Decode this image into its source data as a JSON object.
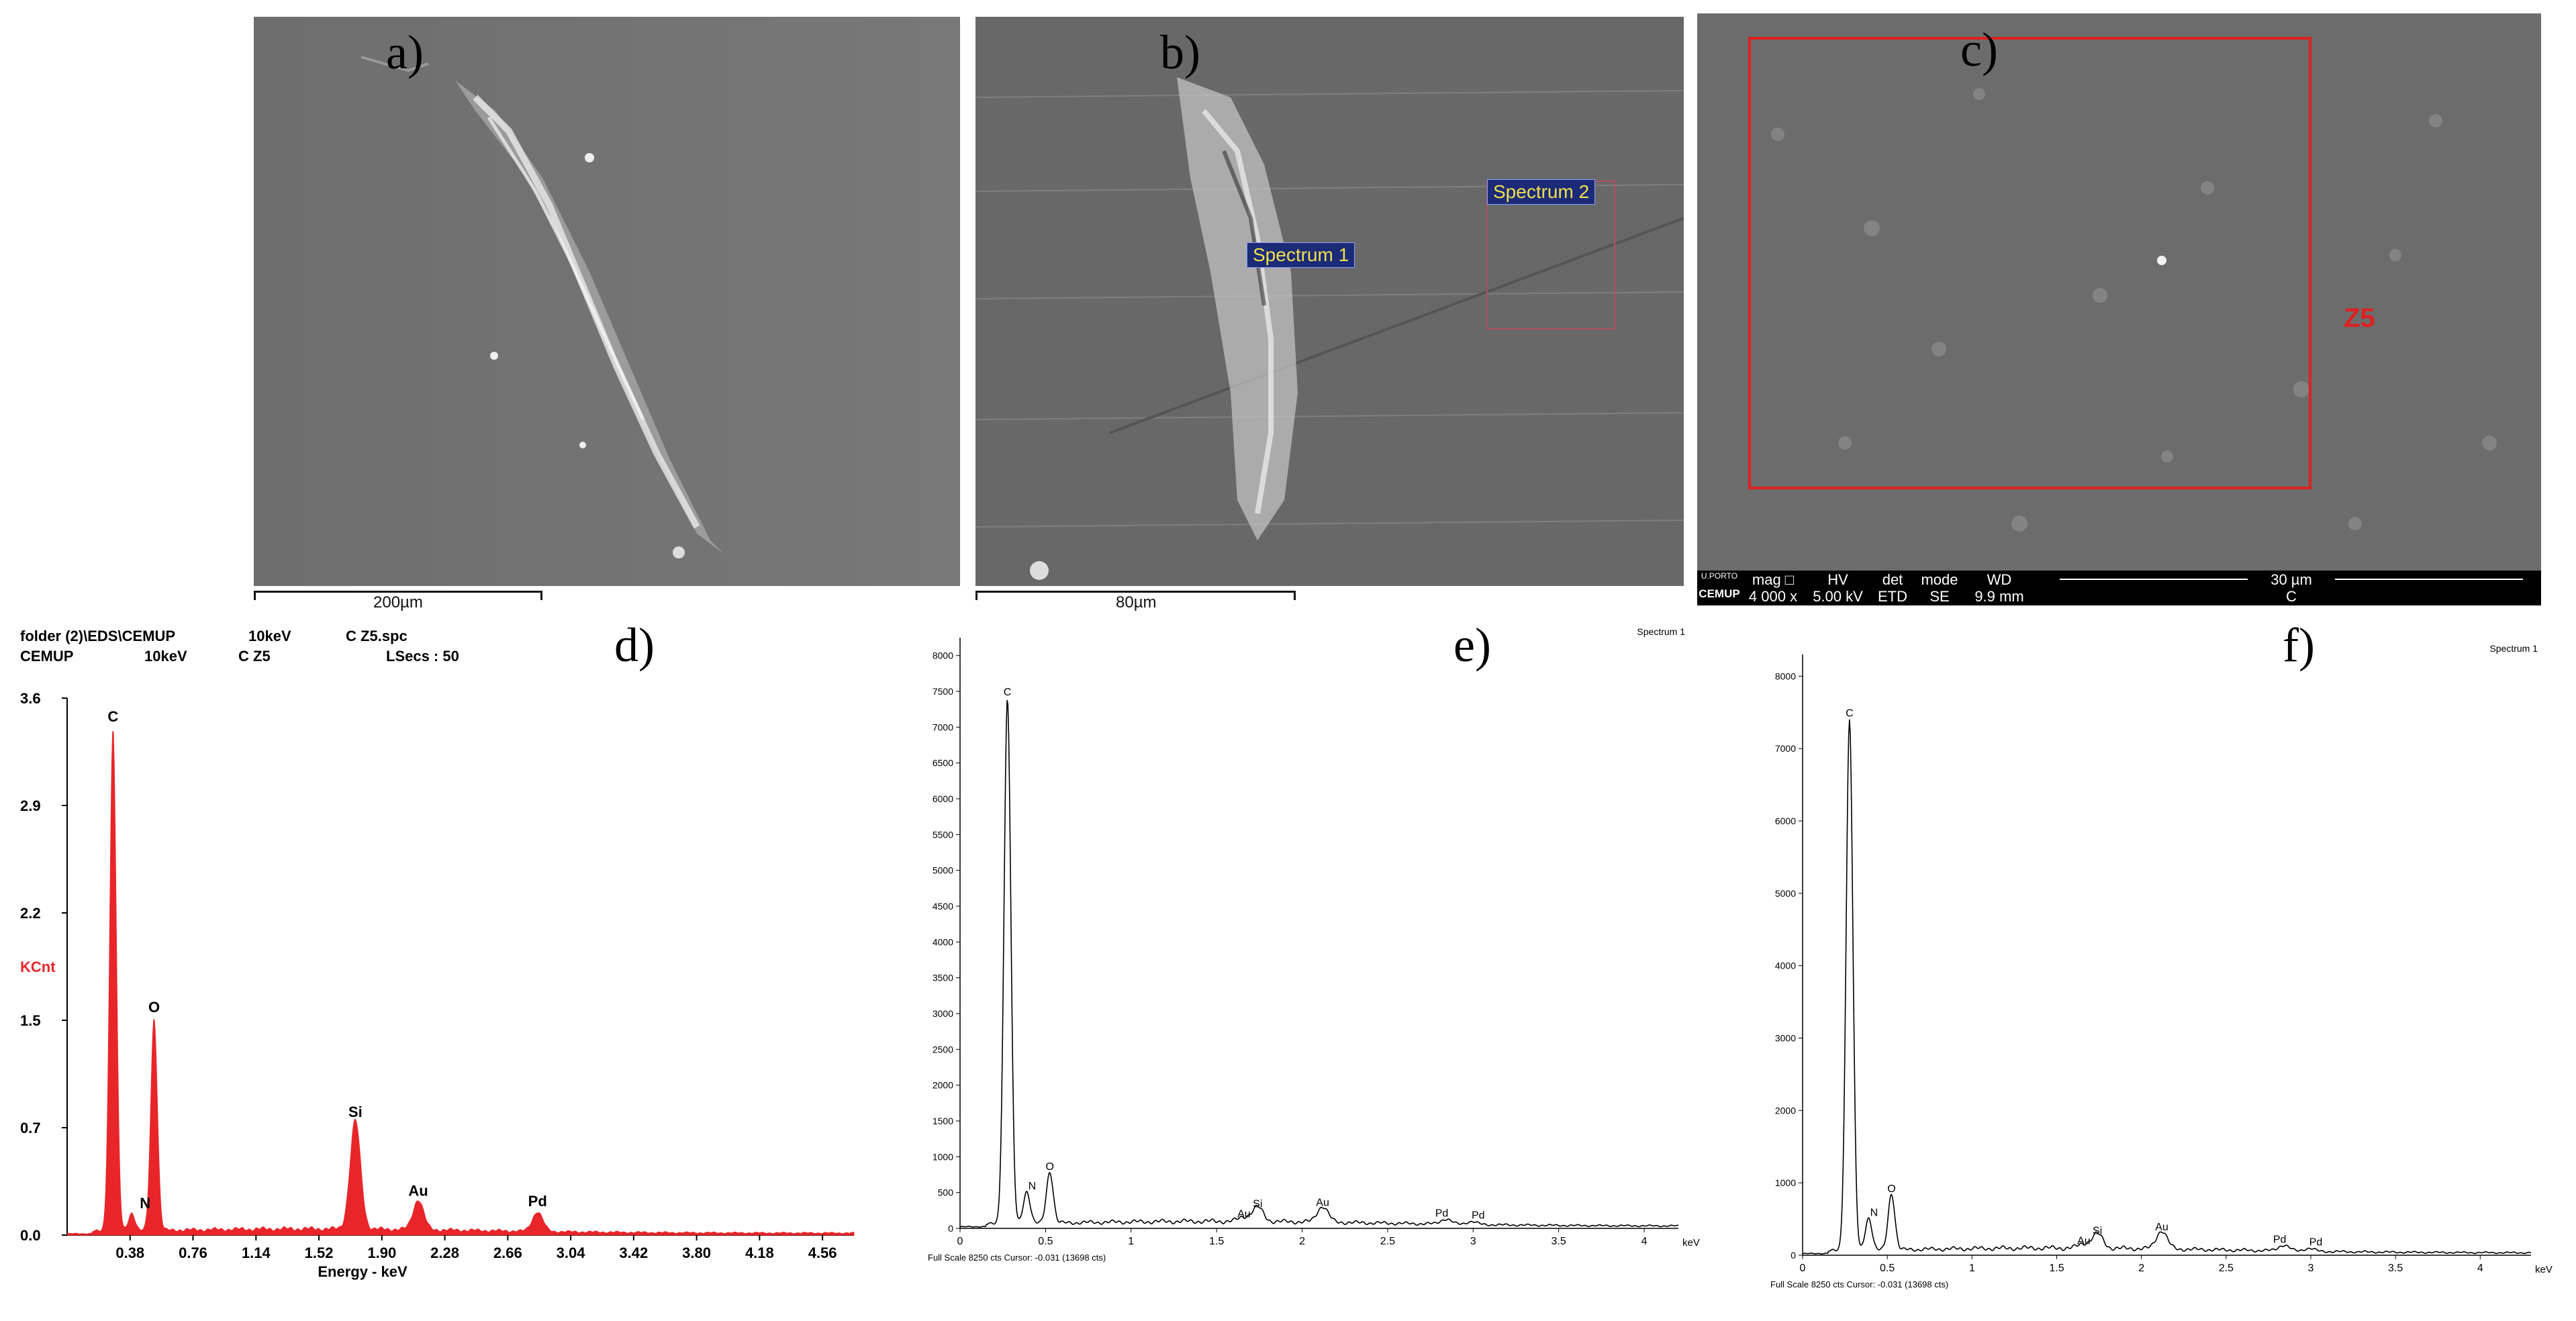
{
  "panels": {
    "a": {
      "letter": "a)",
      "scale_label": "200µm"
    },
    "b": {
      "letter": "b)",
      "scale_label": "80µm",
      "spectrum1": "Spectrum 1",
      "spectrum2": "Spectrum 2"
    },
    "c": {
      "letter": "c)",
      "zone_label": "Z5",
      "info": {
        "logo1": "U.PORTO",
        "logo2": "CEMUP",
        "mag_h": "mag □",
        "mag_v": "4 000 x",
        "hv_h": "HV",
        "hv_v": "5.00 kV",
        "det_h": "det",
        "det_v": "ETD",
        "mode_h": "mode",
        "mode_v": "SE",
        "wd_h": "WD",
        "wd_v": "9.9 mm",
        "scale_h": "30 µm",
        "scale_v": "C"
      }
    },
    "d": {
      "letter": "d)"
    },
    "e": {
      "letter": "e)"
    },
    "f": {
      "letter": "f)"
    }
  },
  "colors": {
    "edx_red": "#e8262a",
    "zone_red": "#e02020",
    "sem_bg": "#727272"
  },
  "chart_data": [
    {
      "panel": "d",
      "type": "area",
      "header": {
        "line1": [
          "folder (2)\\EDS\\CEMUP",
          "10keV",
          "C Z5.spc"
        ],
        "line2": [
          "CEMUP",
          "10keV",
          "C Z5",
          "LSecs : 50"
        ]
      },
      "xlabel": "Energy - keV",
      "ylabel": "KCnt",
      "xlim": [
        0,
        4.75
      ],
      "ylim": [
        0,
        3.6
      ],
      "yticks": [
        "0.0",
        "0.7",
        "1.5",
        "2.2",
        "2.9",
        "3.6"
      ],
      "ytick_values": [
        0,
        0.72,
        1.44,
        2.16,
        2.88,
        3.6
      ],
      "xticks": [
        "0.38",
        "0.76",
        "1.14",
        "1.52",
        "1.90",
        "2.28",
        "2.66",
        "3.04",
        "3.42",
        "3.80",
        "4.18",
        "4.56"
      ],
      "peaks": [
        {
          "label": "C",
          "x": 0.277,
          "y": 3.38
        },
        {
          "label": "N",
          "x": 0.39,
          "y": 0.12
        },
        {
          "label": "O",
          "x": 0.525,
          "y": 1.43
        },
        {
          "label": "Si",
          "x": 1.74,
          "y": 0.73
        },
        {
          "label": "Au",
          "x": 2.12,
          "y": 0.2
        },
        {
          "label": "Pd",
          "x": 2.84,
          "y": 0.13
        }
      ]
    },
    {
      "panel": "e",
      "type": "line",
      "title": "Spectrum 1",
      "xlabel": "keV",
      "xlim": [
        0,
        4.2
      ],
      "ylim": [
        0,
        8250
      ],
      "yticks": [
        "0",
        "500",
        "1000",
        "1500",
        "2000",
        "2500",
        "3000",
        "3500",
        "4000",
        "4500",
        "5000",
        "5500",
        "6000",
        "6500",
        "7000",
        "7500",
        "8000"
      ],
      "ytick_values": [
        0,
        500,
        1000,
        1500,
        2000,
        2500,
        3000,
        3500,
        4000,
        4500,
        5000,
        5500,
        6000,
        6500,
        7000,
        7500,
        8000
      ],
      "xticks": [
        "0",
        "0.5",
        "1",
        "1.5",
        "2",
        "2.5",
        "3",
        "3.5",
        "4"
      ],
      "xtick_values": [
        0,
        0.5,
        1,
        1.5,
        2,
        2.5,
        3,
        3.5,
        4
      ],
      "footer": "Full Scale 8250 cts Cursor: -0.031 (13698 cts)",
      "peaks": [
        {
          "label": "C",
          "x": 0.277,
          "y": 7350
        },
        {
          "label": "N",
          "x": 0.39,
          "y": 450
        },
        {
          "label": "O",
          "x": 0.525,
          "y": 720
        },
        {
          "label": "Au",
          "x": 1.66,
          "y": 60
        },
        {
          "label": "Si",
          "x": 1.74,
          "y": 200
        },
        {
          "label": "Au",
          "x": 2.12,
          "y": 220
        },
        {
          "label": "Pd",
          "x": 2.84,
          "y": 70
        },
        {
          "label": "Pd",
          "x": 2.99,
          "y": 40
        }
      ]
    },
    {
      "panel": "f",
      "type": "line",
      "title": "Spectrum 1",
      "xlabel": "keV",
      "xlim": [
        0,
        4.3
      ],
      "ylim": [
        0,
        8300
      ],
      "yticks": [
        "0",
        "1000",
        "2000",
        "3000",
        "4000",
        "5000",
        "6000",
        "7000",
        "8000"
      ],
      "ytick_values": [
        0,
        1000,
        2000,
        3000,
        4000,
        5000,
        6000,
        7000,
        8000
      ],
      "xticks": [
        "0",
        "0.5",
        "1",
        "1.5",
        "2",
        "2.5",
        "3",
        "3.5",
        "4"
      ],
      "xtick_values": [
        0,
        0.5,
        1,
        1.5,
        2,
        2.5,
        3,
        3.5,
        4
      ],
      "footer": "Full Scale 8250 cts Cursor: -0.031 (13698 cts)",
      "peaks": [
        {
          "label": "C",
          "x": 0.277,
          "y": 7350
        },
        {
          "label": "N",
          "x": 0.39,
          "y": 450
        },
        {
          "label": "O",
          "x": 0.525,
          "y": 780
        },
        {
          "label": "Au",
          "x": 1.66,
          "y": 60
        },
        {
          "label": "Si",
          "x": 1.74,
          "y": 200
        },
        {
          "label": "Au",
          "x": 2.12,
          "y": 250
        },
        {
          "label": "Pd",
          "x": 2.84,
          "y": 80
        },
        {
          "label": "Pd",
          "x": 2.99,
          "y": 40
        }
      ]
    }
  ]
}
